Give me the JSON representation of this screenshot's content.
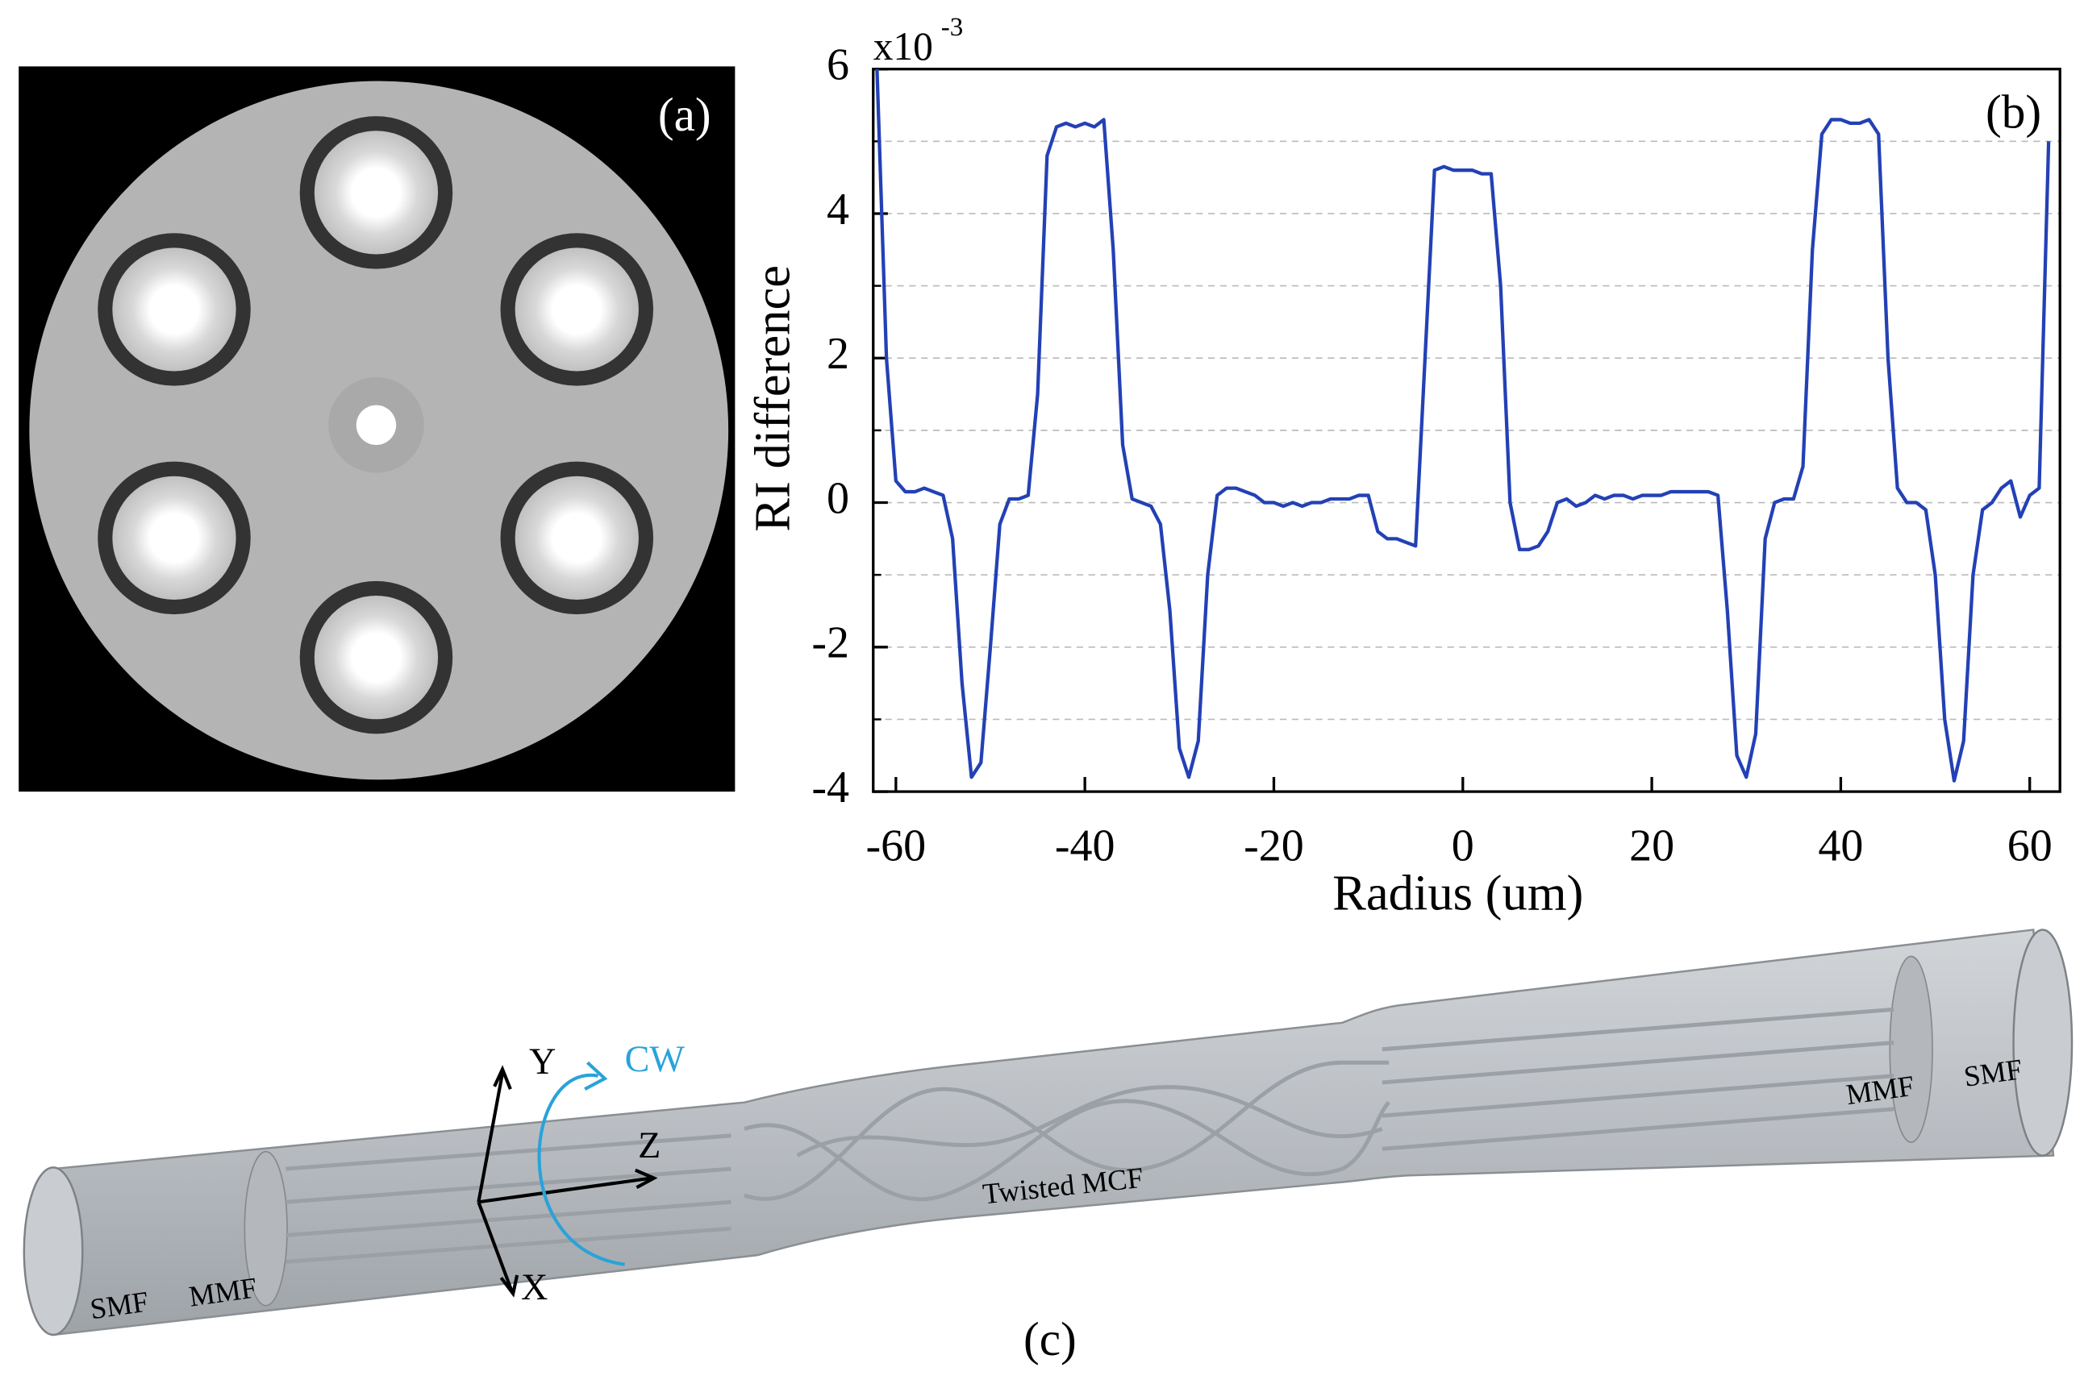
{
  "panel_a": {
    "label": "(a)"
  },
  "chart_data": {
    "type": "line",
    "panel_label": "(b)",
    "y_label": "RI difference",
    "x_label": "Radius (um)",
    "y_multiplier": "x10",
    "y_exponent": "-3",
    "color": "#2341b5",
    "x": [
      -62,
      -61,
      -60,
      -59,
      -58,
      -57,
      -56,
      -55,
      -54,
      -53,
      -52,
      -51,
      -50,
      -49,
      -48,
      -47,
      -46,
      -45,
      -44,
      -43,
      -42,
      -41,
      -40,
      -39,
      -38,
      -37,
      -36,
      -35,
      -34,
      -33,
      -32,
      -31,
      -30,
      -29,
      -28,
      -27,
      -26,
      -25,
      -24,
      -23,
      -22,
      -21,
      -20,
      -19,
      -18,
      -17,
      -16,
      -15,
      -14,
      -13,
      -12,
      -11,
      -10,
      -9,
      -8,
      -7,
      -6,
      -5,
      -4,
      -3,
      -2,
      -1,
      0,
      1,
      2,
      3,
      4,
      5,
      6,
      7,
      8,
      9,
      10,
      11,
      12,
      13,
      14,
      15,
      16,
      17,
      18,
      19,
      20,
      21,
      22,
      23,
      24,
      25,
      26,
      27,
      28,
      29,
      30,
      31,
      32,
      33,
      34,
      35,
      36,
      37,
      38,
      39,
      40,
      41,
      42,
      43,
      44,
      45,
      46,
      47,
      48,
      49,
      50,
      51,
      52,
      53,
      54,
      55,
      56,
      57,
      58,
      59,
      60,
      61,
      62
    ],
    "values": [
      6.0,
      2.0,
      0.3,
      0.15,
      0.15,
      0.2,
      0.15,
      0.1,
      -0.5,
      -2.5,
      -3.8,
      -3.6,
      -2.0,
      -0.3,
      0.05,
      0.05,
      0.1,
      1.5,
      4.8,
      5.2,
      5.25,
      5.2,
      5.25,
      5.2,
      5.3,
      3.5,
      0.8,
      0.05,
      0.0,
      -0.05,
      -0.3,
      -1.5,
      -3.4,
      -3.8,
      -3.3,
      -1.0,
      0.1,
      0.2,
      0.2,
      0.15,
      0.1,
      0.0,
      0.0,
      -0.05,
      0.0,
      -0.05,
      0.0,
      0.0,
      0.05,
      0.05,
      0.05,
      0.1,
      0.1,
      -0.4,
      -0.5,
      -0.5,
      -0.55,
      -0.6,
      2.0,
      4.6,
      4.65,
      4.6,
      4.6,
      4.6,
      4.55,
      4.55,
      3.0,
      0.0,
      -0.65,
      -0.65,
      -0.6,
      -0.4,
      0.0,
      0.05,
      -0.05,
      0.0,
      0.1,
      0.05,
      0.1,
      0.1,
      0.05,
      0.1,
      0.1,
      0.1,
      0.15,
      0.15,
      0.15,
      0.15,
      0.15,
      0.1,
      -1.5,
      -3.5,
      -3.8,
      -3.2,
      -0.5,
      0.0,
      0.05,
      0.05,
      0.5,
      3.5,
      5.1,
      5.3,
      5.3,
      5.25,
      5.25,
      5.3,
      5.1,
      2.0,
      0.2,
      0.0,
      0.0,
      -0.1,
      -1.0,
      -3.0,
      -3.85,
      -3.3,
      -1.0,
      -0.1,
      0.0,
      0.2,
      0.3,
      -0.2,
      0.1,
      0.2,
      5.0
    ],
    "xlim": [
      -62.4,
      63.2
    ],
    "xticks": [
      -60,
      -40,
      -20,
      0,
      20,
      40,
      60
    ],
    "ylim": [
      -4,
      6
    ],
    "yticks": [
      -4,
      -2,
      0,
      2,
      4,
      6
    ],
    "y_minor_ticks": [
      -3,
      -1,
      1,
      3,
      5
    ],
    "grid": true
  },
  "panel_c": {
    "label": "(c)",
    "axis_y": "Y",
    "rotation": "CW",
    "axis_z": "Z",
    "axis_x": "X",
    "middle": "Twisted MCF",
    "left_smf": "SMF",
    "left_mmf": "MMF",
    "right_mmf": "MMF",
    "right_smf": "SMF"
  }
}
